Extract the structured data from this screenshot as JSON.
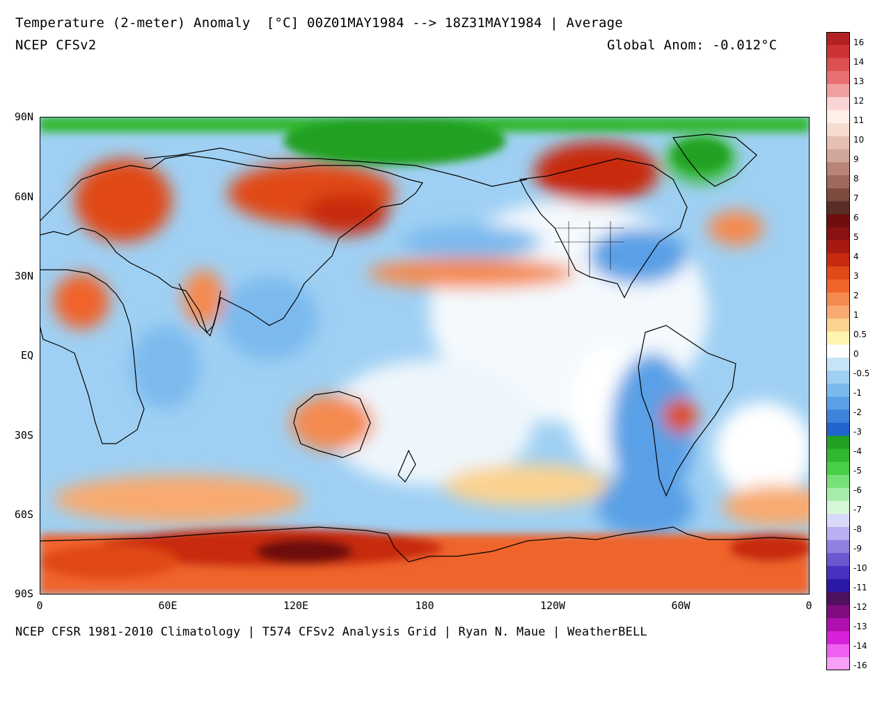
{
  "header": {
    "title": "Temperature (2-meter) Anomaly  [°C] 00Z01MAY1984 --> 18Z31MAY1984 | Average",
    "model": "NCEP CFSv2",
    "global_anom": "Global Anom: -0.012°C"
  },
  "footer": "NCEP CFSR 1981-2010 Climatology | T574 CFSv2 Analysis Grid | Ryan N. Maue | WeatherBELL",
  "axes": {
    "lat_labels": [
      "90N",
      "60N",
      "30N",
      "EQ",
      "30S",
      "60S",
      "90S"
    ],
    "lon_labels": [
      "0",
      "60E",
      "120E",
      "180",
      "120W",
      "60W",
      "0"
    ]
  },
  "colorbar": {
    "labels": [
      "16",
      "14",
      "13",
      "12",
      "11",
      "10",
      "9",
      "8",
      "7",
      "6",
      "5",
      "4",
      "3",
      "2",
      "1",
      "0.5",
      "0",
      "-0.5",
      "-1",
      "-2",
      "-3",
      "-4",
      "-5",
      "-6",
      "-7",
      "-8",
      "-9",
      "-10",
      "-11",
      "-12",
      "-13",
      "-14",
      "-16"
    ],
    "colors": [
      "#b22222",
      "#cd3333",
      "#dc5050",
      "#e87070",
      "#f0a0a0",
      "#fbd5d5",
      "#fff0ea",
      "#f7dcd0",
      "#e6bfb5",
      "#d2a79b",
      "#b98476",
      "#9e6a5d",
      "#7d4a3e",
      "#5a2e26",
      "#6e0e0e",
      "#8a1212",
      "#a81a10",
      "#c82a10",
      "#e04a18",
      "#f0642a",
      "#f58a50",
      "#f8aa70",
      "#fbd28f",
      "#fff4b0",
      "#ffffff",
      "#c5e4f7",
      "#9fd0f3",
      "#7bbaee",
      "#5aa0e6",
      "#3c84dc",
      "#2066cc",
      "#22a022",
      "#30b830",
      "#48d048",
      "#78e078",
      "#a8ecac",
      "#d6f6d8",
      "#d8d8f8",
      "#b8b0f0",
      "#9080e0",
      "#6a58d0",
      "#4830c0",
      "#2a18a8",
      "#501060",
      "#800c80",
      "#b010b0",
      "#d820d8",
      "#f060f0",
      "#f8a0f8"
    ]
  },
  "map": {
    "region": "Global, 0° to 360° longitude (Pacific-centered), 90S to 90N",
    "fields": [
      "background-neutral",
      "arctic-ocean-cold",
      "antarctic-warm",
      "scandinavia-warm",
      "siberia-warm",
      "north-pacific-warm-band",
      "canada-warm",
      "greenland-cold",
      "north-america-cold",
      "australia-warm",
      "south-america-warm-patch",
      "equatorial-cool",
      "southern-ocean-warm"
    ]
  }
}
